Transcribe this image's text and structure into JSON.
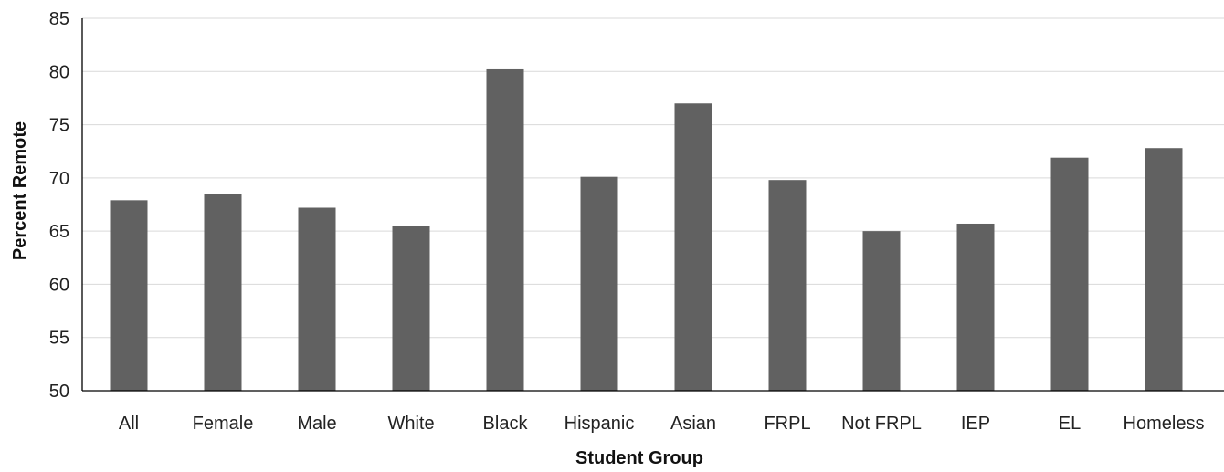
{
  "chart_data": {
    "type": "bar",
    "categories": [
      "All",
      "Female",
      "Male",
      "White",
      "Black",
      "Hispanic",
      "Asian",
      "FRPL",
      "Not FRPL",
      "IEP",
      "EL",
      "Homeless"
    ],
    "values": [
      67.9,
      68.5,
      67.2,
      65.5,
      80.2,
      70.1,
      77.0,
      69.8,
      65.0,
      65.7,
      71.9,
      72.8
    ],
    "xlabel": "Student Group",
    "ylabel": "Percent Remote",
    "ylim": [
      50,
      85
    ],
    "yticks": [
      50,
      55,
      60,
      65,
      70,
      75,
      80,
      85
    ],
    "grid": true,
    "legend": "none",
    "bar_color": "#616161"
  }
}
